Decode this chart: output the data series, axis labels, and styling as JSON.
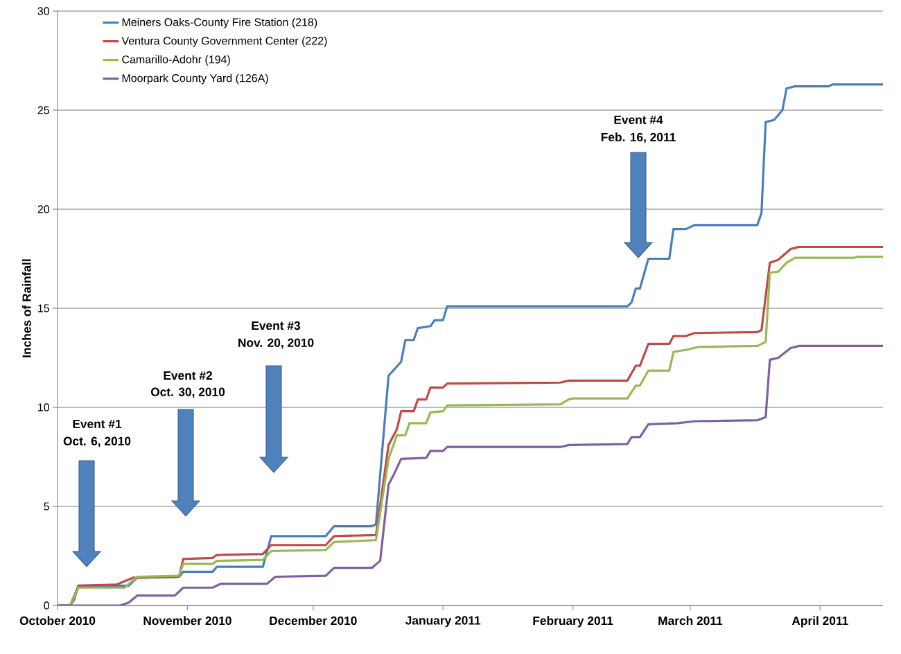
{
  "chart_data": {
    "type": "line",
    "ylabel": "Inches of Rainfall",
    "xlim": [
      "2010-10-01",
      "2011-04-16"
    ],
    "ylim": [
      0,
      30
    ],
    "yticks": [
      0,
      5,
      10,
      15,
      20,
      25,
      30
    ],
    "xticks": [
      {
        "value": "2010-10-01",
        "label": "October 2010"
      },
      {
        "value": "2010-11-01",
        "label": "November 2010"
      },
      {
        "value": "2010-12-01",
        "label": "December 2010"
      },
      {
        "value": "2011-01-01",
        "label": "January 2011"
      },
      {
        "value": "2011-02-01",
        "label": "February 2011"
      },
      {
        "value": "2011-03-01",
        "label": "March 2011"
      },
      {
        "value": "2011-04-01",
        "label": "April 2011"
      }
    ],
    "grid": "y",
    "legend": "top left",
    "line_style": "solid",
    "series": [
      {
        "name": "Meiners Oaks-County Fire Station (218)",
        "color": "#4a7ebb",
        "x": [
          "2010-10-01",
          "2010-10-04",
          "2010-10-06",
          "2010-10-18",
          "2010-10-20",
          "2010-10-30",
          "2010-10-31",
          "2010-11-07",
          "2010-11-08",
          "2010-11-19",
          "2010-11-21",
          "2010-12-04",
          "2010-12-06",
          "2010-12-15",
          "2010-12-16",
          "2010-12-19",
          "2010-12-22",
          "2010-12-23",
          "2010-12-25",
          "2010-12-26",
          "2010-12-29",
          "2010-12-30",
          "2011-01-01",
          "2011-01-02",
          "2011-02-14",
          "2011-02-15",
          "2011-02-16",
          "2011-02-17",
          "2011-02-19",
          "2011-02-24",
          "2011-02-25",
          "2011-02-28",
          "2011-03-02",
          "2011-03-17",
          "2011-03-18",
          "2011-03-19",
          "2011-03-21",
          "2011-03-23",
          "2011-03-24",
          "2011-03-26",
          "2011-04-03",
          "2011-04-04",
          "2011-04-16"
        ],
        "values": [
          0,
          0,
          1.0,
          1.0,
          1.4,
          1.45,
          1.7,
          1.7,
          1.95,
          1.95,
          3.5,
          3.5,
          4.0,
          4.0,
          4.1,
          11.6,
          12.3,
          13.4,
          13.4,
          14.0,
          14.1,
          14.4,
          14.4,
          15.1,
          15.1,
          15.3,
          16.0,
          16.0,
          17.5,
          17.5,
          19.0,
          19.0,
          19.2,
          19.2,
          19.8,
          24.4,
          24.5,
          25.0,
          26.1,
          26.2,
          26.2,
          26.3,
          26.3
        ]
      },
      {
        "name": "Ventura County Government Center (222)",
        "color": "#be4b48",
        "x": [
          "2010-10-01",
          "2010-10-04",
          "2010-10-05",
          "2010-10-06",
          "2010-10-15",
          "2010-10-19",
          "2010-10-30",
          "2010-10-31",
          "2010-11-07",
          "2010-11-08",
          "2010-11-19",
          "2010-11-21",
          "2010-12-04",
          "2010-12-06",
          "2010-12-16",
          "2010-12-19",
          "2010-12-21",
          "2010-12-22",
          "2010-12-25",
          "2010-12-26",
          "2010-12-28",
          "2010-12-29",
          "2011-01-01",
          "2011-01-02",
          "2011-01-29",
          "2011-01-31",
          "2011-02-14",
          "2011-02-16",
          "2011-02-17",
          "2011-02-19",
          "2011-02-24",
          "2011-02-25",
          "2011-02-28",
          "2011-03-02",
          "2011-03-17",
          "2011-03-18",
          "2011-03-20",
          "2011-03-22",
          "2011-03-25",
          "2011-03-27",
          "2011-04-16"
        ],
        "values": [
          0,
          0,
          0.3,
          1.0,
          1.05,
          1.4,
          1.45,
          2.35,
          2.4,
          2.55,
          2.6,
          3.05,
          3.05,
          3.5,
          3.55,
          8.1,
          8.9,
          9.8,
          9.8,
          10.4,
          10.4,
          11.0,
          11.0,
          11.2,
          11.25,
          11.35,
          11.35,
          12.1,
          12.1,
          13.2,
          13.2,
          13.6,
          13.6,
          13.75,
          13.8,
          13.9,
          17.3,
          17.45,
          18.0,
          18.1,
          18.1
        ]
      },
      {
        "name": "Camarillo-Adohr (194)",
        "color": "#98b954",
        "x": [
          "2010-10-01",
          "2010-10-04",
          "2010-10-06",
          "2010-10-17",
          "2010-10-20",
          "2010-10-30",
          "2010-10-31",
          "2010-11-07",
          "2010-11-08",
          "2010-11-19",
          "2010-11-21",
          "2010-12-04",
          "2010-12-06",
          "2010-12-16",
          "2010-12-19",
          "2010-12-21",
          "2010-12-23",
          "2010-12-24",
          "2010-12-28",
          "2010-12-29",
          "2011-01-01",
          "2011-01-02",
          "2011-01-29",
          "2011-01-31",
          "2011-02-01",
          "2011-02-14",
          "2011-02-16",
          "2011-02-17",
          "2011-02-19",
          "2011-02-24",
          "2011-02-25",
          "2011-02-28",
          "2011-03-03",
          "2011-03-17",
          "2011-03-19",
          "2011-03-20",
          "2011-03-22",
          "2011-03-24",
          "2011-03-26",
          "2011-04-09",
          "2011-04-10",
          "2011-04-16"
        ],
        "values": [
          0,
          0,
          0.9,
          0.9,
          1.45,
          1.5,
          2.1,
          2.1,
          2.25,
          2.3,
          2.75,
          2.8,
          3.2,
          3.3,
          7.4,
          8.6,
          8.6,
          9.2,
          9.2,
          9.75,
          9.8,
          10.1,
          10.15,
          10.4,
          10.45,
          10.45,
          11.1,
          11.1,
          11.85,
          11.85,
          12.8,
          12.9,
          13.05,
          13.1,
          13.3,
          16.8,
          16.85,
          17.3,
          17.55,
          17.55,
          17.6,
          17.6
        ]
      },
      {
        "name": "Moorpark County Yard (126A)",
        "color": "#7d60a0",
        "x": [
          "2010-10-01",
          "2010-10-16",
          "2010-10-18",
          "2010-10-20",
          "2010-10-29",
          "2010-10-31",
          "2010-11-07",
          "2010-11-09",
          "2010-11-20",
          "2010-11-22",
          "2010-12-04",
          "2010-12-06",
          "2010-12-15",
          "2010-12-17",
          "2010-12-19",
          "2010-12-20",
          "2010-12-22",
          "2010-12-28",
          "2010-12-29",
          "2011-01-01",
          "2011-01-02",
          "2011-01-29",
          "2011-01-31",
          "2011-02-14",
          "2011-02-15",
          "2011-02-17",
          "2011-02-19",
          "2011-02-26",
          "2011-03-02",
          "2011-03-17",
          "2011-03-19",
          "2011-03-20",
          "2011-03-22",
          "2011-03-25",
          "2011-03-27",
          "2011-04-16"
        ],
        "values": [
          0,
          0,
          0.15,
          0.5,
          0.5,
          0.9,
          0.9,
          1.1,
          1.1,
          1.45,
          1.5,
          1.9,
          1.9,
          2.25,
          6.1,
          6.5,
          7.4,
          7.45,
          7.8,
          7.8,
          8.0,
          8.0,
          8.1,
          8.15,
          8.5,
          8.5,
          9.15,
          9.2,
          9.3,
          9.35,
          9.5,
          12.4,
          12.5,
          13.0,
          13.1,
          13.1
        ]
      }
    ],
    "annotations": [
      "Event #1",
      "Oct. 6, 2010",
      "Event #2",
      "Oct. 30, 2010",
      "Event #3",
      "Nov. 20, 2010",
      "Event #4",
      "Feb. 16, 2011"
    ]
  }
}
